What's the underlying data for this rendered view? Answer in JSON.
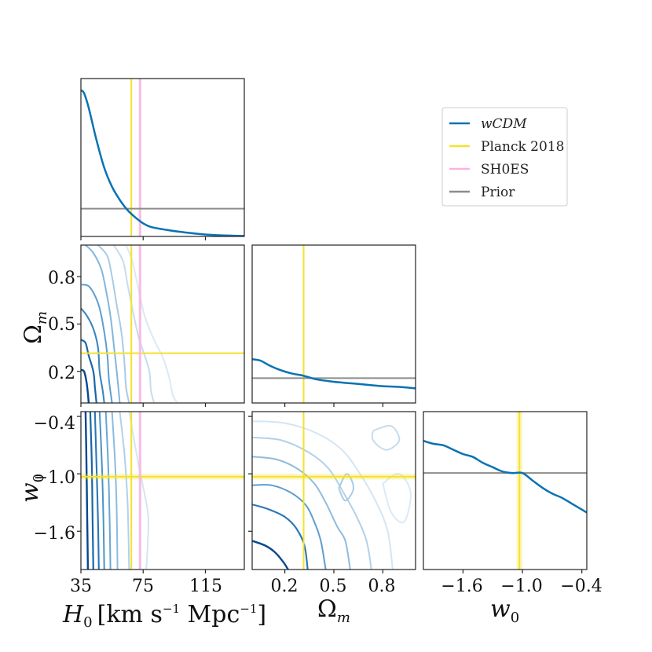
{
  "chart_data": {
    "type": "corner",
    "title": "",
    "parameters": [
      {
        "name": "H0",
        "label": "H0 [km s^-1 Mpc^-1]",
        "range": [
          35,
          140
        ],
        "ticks": [
          35,
          75,
          115
        ],
        "tick_labels": [
          "35",
          "75",
          "115"
        ]
      },
      {
        "name": "Omega_m",
        "label": "Ωm",
        "range": [
          0.0,
          1.0
        ],
        "ticks": [
          0.2,
          0.5,
          0.8
        ],
        "tick_labels": [
          "0.2",
          "0.5",
          "0.8"
        ]
      },
      {
        "name": "w0",
        "label": "w0",
        "range": [
          -2.0,
          -0.35
        ],
        "ticks": [
          -1.6,
          -1.0,
          -0.4
        ],
        "tick_labels": [
          "−1.6",
          "−1.0",
          "−0.4"
        ]
      }
    ],
    "axis_label_texts": {
      "H0_main": "H",
      "H0_sub": "0",
      "H0_units": "[km s",
      "H0_exp1": "−1",
      "H0_units2": " Mpc",
      "H0_exp2": "−1",
      "H0_close": "]",
      "Om_main": "Ω",
      "Om_sub": "m",
      "w_main": "w",
      "w_sub": "0"
    },
    "legend": [
      {
        "label": "wCDM",
        "color": "#0a72b4"
      },
      {
        "label": "Planck 2018",
        "color": "#f5e12c"
      },
      {
        "label": "SH0ES",
        "color": "#f9b3e0"
      },
      {
        "label": "Prior",
        "color": "#8c8c8c"
      }
    ],
    "legend_position": "top-right",
    "reference_values": {
      "planck": {
        "H0": 67.4,
        "Omega_m": 0.315,
        "w0": -1.03,
        "w0_band": [
          -1.06,
          -1.0
        ]
      },
      "shoes": {
        "H0": 73.0,
        "H0_band": [
          72.0,
          74.0
        ]
      }
    },
    "marginals": {
      "H0": {
        "x": [
          35,
          37,
          40,
          45,
          50,
          55,
          60,
          65,
          70,
          75,
          80,
          90,
          100,
          110,
          120,
          130,
          140
        ],
        "y": [
          1.0,
          0.98,
          0.88,
          0.66,
          0.47,
          0.34,
          0.25,
          0.18,
          0.13,
          0.09,
          0.065,
          0.045,
          0.03,
          0.018,
          0.01,
          0.006,
          0.003
        ],
        "prior": 0.19
      },
      "Omega_m": {
        "x": [
          0.0,
          0.05,
          0.1,
          0.15,
          0.2,
          0.25,
          0.3,
          0.35,
          0.4,
          0.5,
          0.6,
          0.7,
          0.8,
          0.9,
          1.0
        ],
        "y": [
          0.3,
          0.29,
          0.26,
          0.235,
          0.215,
          0.2,
          0.19,
          0.175,
          0.16,
          0.145,
          0.135,
          0.125,
          0.115,
          0.11,
          0.1
        ],
        "prior": 0.17
      },
      "w0": {
        "x": [
          -2.0,
          -1.9,
          -1.8,
          -1.7,
          -1.6,
          -1.5,
          -1.4,
          -1.3,
          -1.2,
          -1.1,
          -1.0,
          -0.9,
          -0.8,
          -0.7,
          -0.6,
          -0.5,
          -0.4,
          -0.35
        ],
        "y": [
          0.88,
          0.86,
          0.85,
          0.82,
          0.79,
          0.77,
          0.73,
          0.7,
          0.67,
          0.66,
          0.66,
          0.61,
          0.56,
          0.52,
          0.49,
          0.45,
          0.41,
          0.39
        ],
        "prior": 0.66
      }
    },
    "contours": {
      "H0_Om": {
        "levels": [
          {
            "color": "#08478f",
            "width": 2.4,
            "pts": [
              [
                35,
                0.21
              ],
              [
                37,
                0.2
              ],
              [
                38.5,
                0.14
              ],
              [
                39.5,
                0.06
              ],
              [
                40,
                0.0
              ]
            ]
          },
          {
            "color": "#1a66a8",
            "width": 2.2,
            "pts": [
              [
                35,
                0.4
              ],
              [
                38,
                0.38
              ],
              [
                40,
                0.3
              ],
              [
                43,
                0.2
              ],
              [
                44,
                0.1
              ],
              [
                45,
                0.0
              ]
            ]
          },
          {
            "color": "#3a86bf",
            "width": 2.1,
            "pts": [
              [
                35,
                0.6
              ],
              [
                39,
                0.55
              ],
              [
                43,
                0.47
              ],
              [
                46,
                0.35
              ],
              [
                47,
                0.2
              ],
              [
                49,
                0.08
              ],
              [
                50,
                0.0
              ]
            ]
          },
          {
            "color": "#5e9ed0",
            "width": 2.0,
            "pts": [
              [
                35.5,
                0.75
              ],
              [
                40,
                0.74
              ],
              [
                44,
                0.68
              ],
              [
                47,
                0.6
              ],
              [
                50,
                0.45
              ],
              [
                52,
                0.3
              ],
              [
                53,
                0.15
              ],
              [
                55,
                0.0
              ]
            ]
          },
          {
            "color": "#83b6dc",
            "width": 2.0,
            "pts": [
              [
                38,
                1.0
              ],
              [
                43,
                0.95
              ],
              [
                48,
                0.85
              ],
              [
                51,
                0.72
              ],
              [
                54,
                0.55
              ],
              [
                56,
                0.38
              ],
              [
                58,
                0.2
              ],
              [
                60,
                0.0
              ]
            ]
          },
          {
            "color": "#a8cbe6",
            "width": 2.0,
            "pts": [
              [
                46,
                1.0
              ],
              [
                52,
                0.93
              ],
              [
                55,
                0.8
              ],
              [
                58,
                0.62
              ],
              [
                61,
                0.45
              ],
              [
                63,
                0.25
              ],
              [
                64,
                0.1
              ],
              [
                66,
                0.0
              ]
            ]
          },
          {
            "color": "#c6dcef",
            "width": 2.0,
            "pts": [
              [
                56,
                1.0
              ],
              [
                62,
                0.9
              ],
              [
                65,
                0.75
              ],
              [
                68,
                0.6
              ],
              [
                72,
                0.42
              ],
              [
                76,
                0.3
              ],
              [
                79,
                0.2
              ],
              [
                80,
                0.08
              ],
              [
                82,
                0.0
              ]
            ]
          },
          {
            "color": "#dce9f5",
            "width": 2.0,
            "pts": [
              [
                64,
                1.0
              ],
              [
                68,
                0.9
              ],
              [
                72,
                0.72
              ],
              [
                76,
                0.55
              ],
              [
                82,
                0.4
              ],
              [
                88,
                0.28
              ],
              [
                92,
                0.15
              ],
              [
                94,
                0.05
              ],
              [
                97,
                0.0
              ]
            ]
          }
        ]
      },
      "H0_w0": {
        "levels": [
          {
            "color": "#08478f",
            "width": 2.4,
            "pts": [
              [
                38,
                -0.35
              ],
              [
                38.5,
                -0.8
              ],
              [
                39,
                -1.4
              ],
              [
                39.5,
                -2.0
              ]
            ]
          },
          {
            "color": "#1a66a8",
            "width": 2.2,
            "pts": [
              [
                41,
                -0.35
              ],
              [
                42,
                -0.9
              ],
              [
                42.5,
                -1.5
              ],
              [
                43,
                -2.0
              ]
            ]
          },
          {
            "color": "#2a76b5",
            "width": 2.1,
            "pts": [
              [
                44,
                -0.35
              ],
              [
                45,
                -0.9
              ],
              [
                46,
                -1.5
              ],
              [
                46.5,
                -2.0
              ]
            ]
          },
          {
            "color": "#4a93c7",
            "width": 2.0,
            "pts": [
              [
                47,
                -0.35
              ],
              [
                48.5,
                -0.9
              ],
              [
                49.5,
                -1.5
              ],
              [
                50,
                -2.0
              ]
            ]
          },
          {
            "color": "#6aa7d3",
            "width": 2.0,
            "pts": [
              [
                51,
                -0.35
              ],
              [
                52.5,
                -0.9
              ],
              [
                53.5,
                -1.5
              ],
              [
                54,
                -2.0
              ]
            ]
          },
          {
            "color": "#8dbbdf",
            "width": 2.0,
            "pts": [
              [
                55,
                -0.35
              ],
              [
                57,
                -0.9
              ],
              [
                58,
                -1.4
              ],
              [
                58.5,
                -2.0
              ]
            ]
          },
          {
            "color": "#b2d1e9",
            "width": 2.0,
            "pts": [
              [
                60,
                -0.35
              ],
              [
                63,
                -0.8
              ],
              [
                65,
                -1.3
              ],
              [
                66,
                -2.0
              ]
            ]
          },
          {
            "color": "#d4e5f3",
            "width": 2.0,
            "pts": [
              [
                66,
                -0.35
              ],
              [
                72,
                -0.9
              ],
              [
                78,
                -1.4
              ],
              [
                78,
                -1.7
              ],
              [
                77,
                -2.0
              ]
            ]
          }
        ]
      },
      "Om_w0": {
        "levels": [
          {
            "color": "#08478f",
            "width": 2.4,
            "pts": [
              [
                0.0,
                -1.7
              ],
              [
                0.08,
                -1.75
              ],
              [
                0.14,
                -1.82
              ],
              [
                0.19,
                -1.92
              ],
              [
                0.22,
                -2.0
              ]
            ]
          },
          {
            "color": "#2a76b5",
            "width": 2.1,
            "pts": [
              [
                0.0,
                -1.32
              ],
              [
                0.1,
                -1.37
              ],
              [
                0.2,
                -1.45
              ],
              [
                0.27,
                -1.57
              ],
              [
                0.32,
                -1.75
              ],
              [
                0.34,
                -2.0
              ]
            ]
          },
          {
            "color": "#5e9ed0",
            "width": 2.0,
            "pts": [
              [
                0.0,
                -1.12
              ],
              [
                0.12,
                -1.12
              ],
              [
                0.24,
                -1.2
              ],
              [
                0.33,
                -1.33
              ],
              [
                0.38,
                -1.5
              ],
              [
                0.42,
                -1.7
              ],
              [
                0.45,
                -2.0
              ]
            ]
          },
          {
            "color": "#8dbbdf",
            "width": 2.0,
            "pts": [
              [
                0.0,
                -0.82
              ],
              [
                0.15,
                -0.85
              ],
              [
                0.28,
                -0.95
              ],
              [
                0.38,
                -1.1
              ],
              [
                0.45,
                -1.3
              ],
              [
                0.52,
                -1.55
              ],
              [
                0.57,
                -1.7
              ],
              [
                0.6,
                -2.0
              ]
            ]
          },
          {
            "color": "#b2d1e9",
            "width": 2.0,
            "pts": [
              [
                0.0,
                -0.62
              ],
              [
                0.18,
                -0.65
              ],
              [
                0.35,
                -0.78
              ],
              [
                0.47,
                -0.95
              ],
              [
                0.56,
                -1.2
              ],
              [
                0.64,
                -1.45
              ],
              [
                0.7,
                -1.7
              ],
              [
                0.73,
                -2.0
              ]
            ]
          },
          {
            "color": "#d4e5f3",
            "width": 2.0,
            "pts": [
              [
                0.0,
                -0.45
              ],
              [
                0.2,
                -0.47
              ],
              [
                0.4,
                -0.58
              ],
              [
                0.55,
                -0.75
              ],
              [
                0.66,
                -1.0
              ],
              [
                0.76,
                -1.3
              ],
              [
                0.83,
                -1.6
              ],
              [
                0.86,
                -2.0
              ]
            ]
          }
        ],
        "islands": [
          {
            "color": "#a8cbe6",
            "pts": [
              [
                0.53,
                -1.15
              ],
              [
                0.58,
                -1.0
              ],
              [
                0.62,
                -1.15
              ],
              [
                0.57,
                -1.28
              ],
              [
                0.53,
                -1.15
              ]
            ]
          },
          {
            "color": "#c6dcef",
            "pts": [
              [
                0.74,
                -0.55
              ],
              [
                0.85,
                -0.5
              ],
              [
                0.9,
                -0.65
              ],
              [
                0.82,
                -0.75
              ],
              [
                0.74,
                -0.65
              ],
              [
                0.74,
                -0.55
              ]
            ]
          },
          {
            "color": "#dce9f5",
            "pts": [
              [
                0.8,
                -1.1
              ],
              [
                0.9,
                -1.0
              ],
              [
                0.97,
                -1.2
              ],
              [
                0.93,
                -1.5
              ],
              [
                0.85,
                -1.4
              ],
              [
                0.8,
                -1.1
              ]
            ]
          }
        ]
      }
    }
  }
}
